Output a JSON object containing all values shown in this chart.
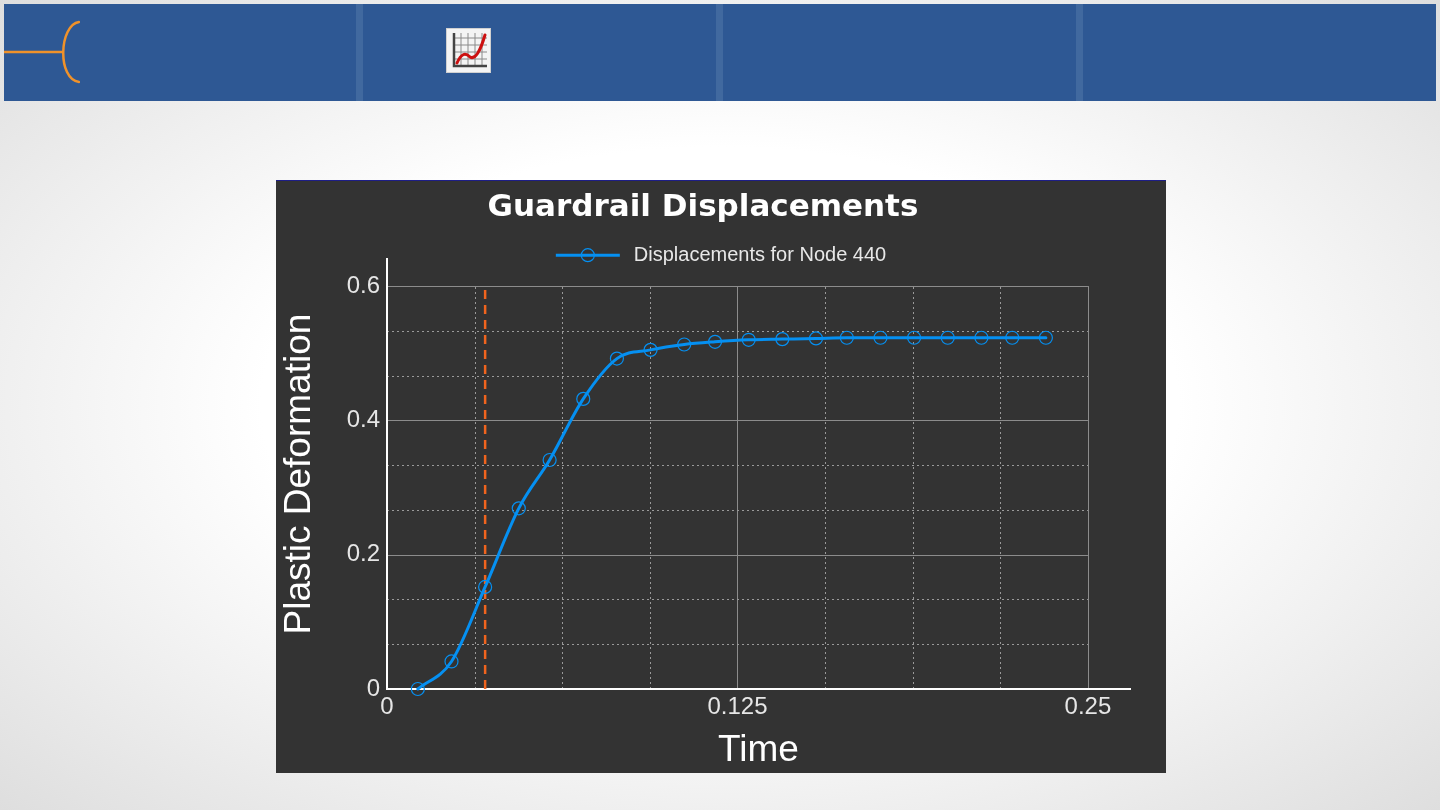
{
  "chart_data": {
    "type": "line",
    "title": "Guardrail Displacements",
    "xlabel": "Time",
    "ylabel": "Plastic Deformation",
    "x": [
      0.011,
      0.023,
      0.035,
      0.047,
      0.058,
      0.07,
      0.082,
      0.094,
      0.106,
      0.117,
      0.129,
      0.141,
      0.153,
      0.164,
      0.176,
      0.188,
      0.2,
      0.212,
      0.223,
      0.235
    ],
    "series": [
      {
        "name": "Displacements for Node 440",
        "color": "#0590f2",
        "values": [
          0,
          0.041,
          0.152,
          0.269,
          0.341,
          0.432,
          0.492,
          0.505,
          0.513,
          0.517,
          0.52,
          0.521,
          0.522,
          0.523,
          0.523,
          0.523,
          0.523,
          0.523,
          0.523,
          0.523
        ]
      }
    ],
    "xlim": [
      0,
      0.265
    ],
    "ylim": [
      0,
      0.64
    ],
    "xticks": [
      0,
      {
        "value": 0.03125,
        "label": null
      },
      {
        "value": 0.0625,
        "label": null
      },
      {
        "value": 0.09375,
        "label": null
      },
      0.125,
      {
        "value": 0.15625,
        "label": null
      },
      {
        "value": 0.1875,
        "label": null
      },
      {
        "value": 0.21875,
        "label": null
      },
      0.25
    ],
    "yticks": [
      0,
      {
        "value": 0.0667,
        "label": null
      },
      {
        "value": 0.1333,
        "label": null
      },
      0.2,
      {
        "value": 0.2667,
        "label": null
      },
      {
        "value": 0.3333,
        "label": null
      },
      0.4,
      {
        "value": 0.4667,
        "label": null
      },
      {
        "value": 0.5333,
        "label": null
      },
      0.6
    ],
    "ref_lines": [
      {
        "axis": "x",
        "value": 0.035,
        "color": "#f0641e",
        "line_style": "dashed"
      }
    ],
    "grid": true,
    "legend": "top",
    "marker": "circle"
  }
}
